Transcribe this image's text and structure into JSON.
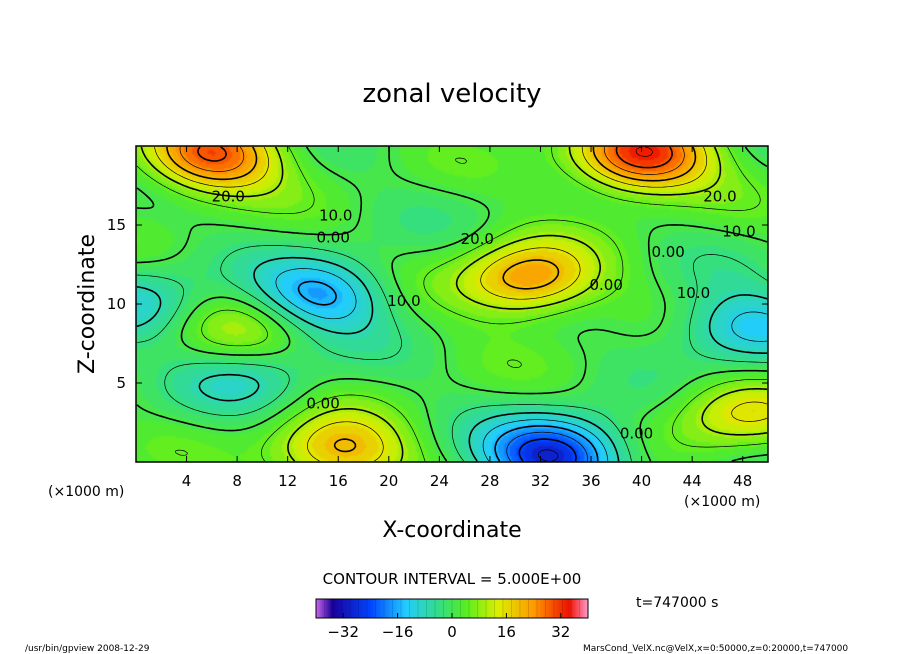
{
  "chart_data": {
    "type": "heatmap",
    "title": "zonal velocity",
    "xlabel": "X-coordinate",
    "ylabel": "Z-coordinate",
    "x_unit": "(×1000 m)",
    "y_unit": "(×1000 m)",
    "x_ticks": [
      4,
      8,
      12,
      16,
      20,
      24,
      28,
      32,
      36,
      40,
      44,
      48
    ],
    "y_ticks": [
      5,
      10,
      15
    ],
    "xlim": [
      0,
      50
    ],
    "ylim": [
      0,
      20
    ],
    "contour_labels": [
      {
        "text": "20.0",
        "x": 7.3,
        "y": 16.8
      },
      {
        "text": "10.0",
        "x": 15.8,
        "y": 15.6
      },
      {
        "text": "0.00",
        "x": 15.6,
        "y": 14.2
      },
      {
        "text": "20.0",
        "x": 27.0,
        "y": 14.1
      },
      {
        "text": "10.0",
        "x": 21.2,
        "y": 10.2
      },
      {
        "text": "0.00",
        "x": 14.8,
        "y": 3.7
      },
      {
        "text": "0.00",
        "x": 37.2,
        "y": 11.2
      },
      {
        "text": "0.00",
        "x": 39.6,
        "y": 1.8
      },
      {
        "text": "20.0",
        "x": 46.2,
        "y": 16.8
      },
      {
        "text": "10.0",
        "x": 47.7,
        "y": 14.6
      },
      {
        "text": "0.00",
        "x": 42.1,
        "y": 13.3
      },
      {
        "text": "10.0",
        "x": 44.1,
        "y": 10.7
      }
    ],
    "contour_interval_text": "CONTOUR INTERVAL = 5.000E+00",
    "colorbar": {
      "min": -40,
      "max": 40,
      "ticks": [
        -32,
        -16,
        0,
        16,
        32
      ]
    },
    "time_label": "t=747000 s",
    "field_features": [
      {
        "sign": "positive",
        "level": 35,
        "x": 40,
        "y": 19.4
      },
      {
        "sign": "positive",
        "level": 30,
        "x": 6,
        "y": 19.4
      },
      {
        "sign": "positive",
        "level": 25,
        "x": 31,
        "y": 11.5
      },
      {
        "sign": "positive",
        "level": 22,
        "x": 16,
        "y": 0.6
      },
      {
        "sign": "positive",
        "level": 15,
        "x": 47.5,
        "y": 3
      },
      {
        "sign": "positive",
        "level": 10,
        "x": 8.5,
        "y": 8.5
      },
      {
        "sign": "negative",
        "level": -35,
        "x": 33,
        "y": 0.4
      },
      {
        "sign": "negative",
        "level": -22,
        "x": 14.5,
        "y": 10.5
      },
      {
        "sign": "negative",
        "level": -18,
        "x": 48,
        "y": 8.5
      },
      {
        "sign": "negative",
        "level": -12,
        "x": 0.5,
        "y": 10
      },
      {
        "sign": "negative",
        "level": -10,
        "x": 9,
        "y": 5.3
      }
    ]
  },
  "footer": {
    "left": "/usr/bin/gpview  2008-12-29",
    "right": "MarsCond_VelX.nc@VelX,x=0:50000,z=0:20000,t=747000"
  }
}
